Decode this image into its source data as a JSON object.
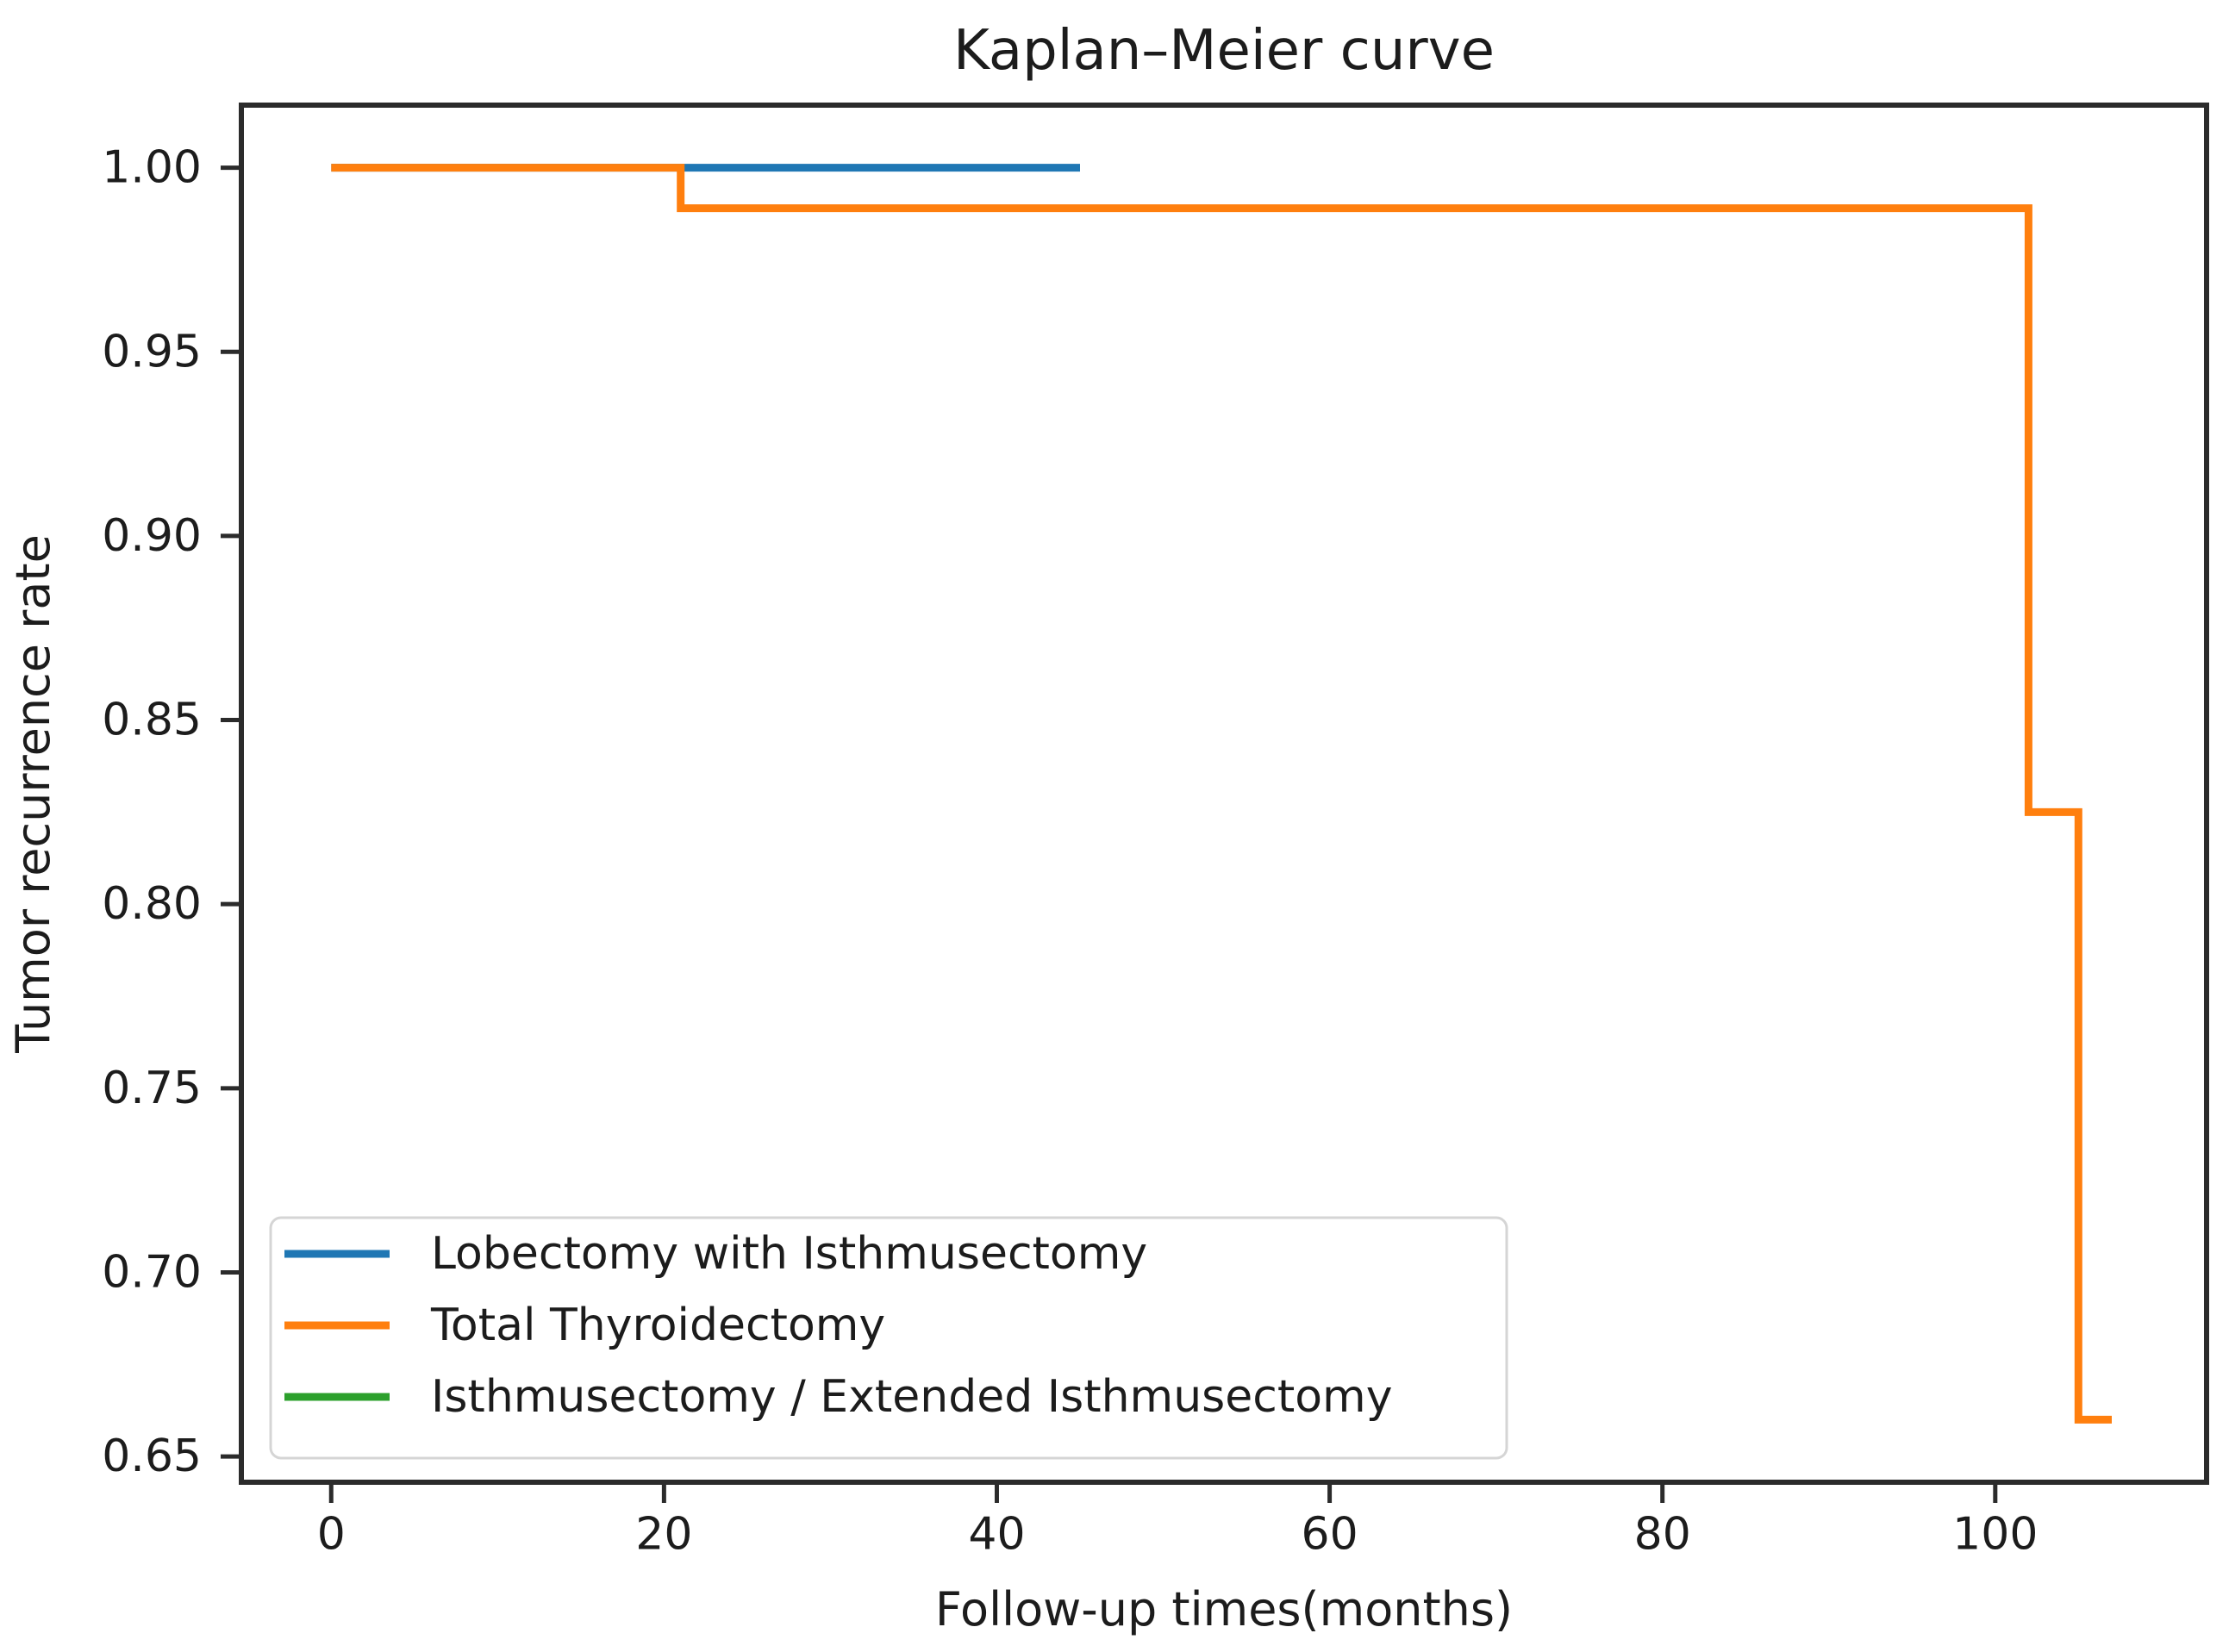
{
  "figure": {
    "background": "#ffffff"
  },
  "chart_data": {
    "type": "line",
    "subtype": "kaplan-meier-step",
    "title": "Kaplan–Meier curve",
    "xlabel": "Follow-up times(months)",
    "ylabel": "Tumor recurrence rate",
    "xlim": [
      -5.4,
      112.7
    ],
    "ylim": [
      0.643,
      1.017
    ],
    "xticks": [
      0,
      20,
      40,
      60,
      80,
      100
    ],
    "yticks": [
      1.0,
      0.95,
      0.9,
      0.85,
      0.8,
      0.75,
      0.7,
      0.65
    ],
    "grid": false,
    "axis_color": "#2b2b2b",
    "text_color": "#1c1c1c",
    "series": [
      {
        "name": "Isthmusectomy / Extended Isthmusectomy",
        "color": "#2ca02c",
        "visible_in_plot": false,
        "points": [
          [
            0,
            1.0
          ]
        ]
      },
      {
        "name": "Lobectomy with Isthmusectomy",
        "color": "#1f77b4",
        "visible_in_plot": true,
        "points": [
          [
            0,
            1.0
          ],
          [
            45,
            1.0
          ]
        ]
      },
      {
        "name": "Total Thyroidectomy",
        "color": "#ff7f0e",
        "visible_in_plot": true,
        "points": [
          [
            0,
            1.0
          ],
          [
            21,
            1.0
          ],
          [
            21,
            0.989
          ],
          [
            102,
            0.989
          ],
          [
            102,
            0.825
          ],
          [
            105,
            0.825
          ],
          [
            105,
            0.66
          ],
          [
            107,
            0.66
          ]
        ]
      }
    ],
    "legend": {
      "position": "lower left",
      "entries": [
        {
          "label": "Lobectomy with Isthmusectomy",
          "color": "#1f77b4"
        },
        {
          "label": "Total Thyroidectomy",
          "color": "#ff7f0e"
        },
        {
          "label": "Isthmusectomy / Extended Isthmusectomy",
          "color": "#2ca02c"
        }
      ]
    }
  }
}
